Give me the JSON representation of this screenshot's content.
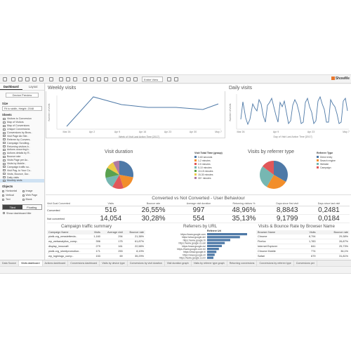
{
  "toolbar": {
    "fit_label": "Entire View",
    "brand": "ShowMe"
  },
  "leftpane": {
    "tabs": [
      "Dashboard",
      "Layout"
    ],
    "device_preview": "Device Preview",
    "size_head": "Size",
    "size_value": "Fit to width, Height: 2048",
    "sheets_head": "Sheets",
    "sheets": [
      "Visitors to Conversion",
      "Map of Visitors",
      "Map of Conversions",
      "Unique Conversions",
      "Conversions by Brow..",
      "Visit Page Ab.Site..",
      "Referrer by Convers..",
      "Campaign Scrolling..",
      "Returning visitors b..",
      "Actions occurring b..",
      "Actions details by R..",
      "Bounce rate",
      "Visits Page per Ac..",
      "Visits by Mobile..",
      "Campaign traffic su..",
      "Visit Pag..to Your Co..",
      "Visits, Bounce, Dur..",
      "Daily visits",
      "Monthly visits"
    ],
    "selected_sheet": 18,
    "objects_head": "Objects",
    "objects": [
      "Horizontal",
      "Image",
      "Vertical",
      "Web Page",
      "Text",
      "Blank"
    ],
    "tiled_label": "Tiled",
    "floating_label": "Floating",
    "show_title": "Show dashboard title"
  },
  "weekly": {
    "title": "Weekly visits",
    "ylabel": "Number of visits",
    "xlabel": "Week of Visit Last Action Time [2017]",
    "ticks": [
      "Mar 26",
      "Apr 2",
      "Apr 9",
      "Apr 16",
      "Apr 23",
      "Apr 30",
      "May 7"
    ]
  },
  "daily": {
    "title": "Daily visits",
    "ylabel": "Number of visits",
    "xlabel": "Day of Visit Last Action Time [2017]",
    "ticks": [
      "Mar 26",
      "Apr 9",
      "Apr 23",
      "May 7"
    ]
  },
  "duration": {
    "title": "Visit duration",
    "legend_title": "Visit Total Time (group)",
    "labels": [
      "0-60 seconds",
      "1-2 minutes",
      "2-5 minutes",
      "5-10 minutes",
      "10-15 minutes",
      "15-30 minutes",
      "30+ minutes"
    ],
    "colors": [
      "#4e79a7",
      "#f28e2b",
      "#e15759",
      "#76b7b2",
      "#59a14f",
      "#edc948",
      "#b07aa1"
    ]
  },
  "referrer_type": {
    "title": "Visits by referrer type",
    "legend_title": "Referrer Type",
    "labels": [
      "Direct entry",
      "Search engine",
      "Website",
      "Campaign"
    ],
    "colors": [
      "#4e79a7",
      "#f28e2b",
      "#76b7b2",
      "#e15759"
    ]
  },
  "converted": {
    "title": "Converted vs Not Converted - User Behaviour",
    "headers": [
      "Visit Goal Converted",
      "Visits",
      "Bounce rate",
      "Average visit duration",
      "Returning visitors %",
      "Days since first visit",
      "Days since last visit"
    ],
    "rows": [
      {
        "label": "Converted",
        "values": [
          "516",
          "26,55%",
          "997",
          "48,96%",
          "8,8843",
          "0,2481"
        ]
      },
      {
        "label": "Not converted",
        "values": [
          "14,054",
          "30,28%",
          "554",
          "35,13%",
          "9,1799",
          "0,0184"
        ]
      }
    ]
  },
  "campaign": {
    "title": "Campaign traffic summary",
    "headers": [
      "Campaign Name",
      "Visits",
      "Average visit",
      "Bounce rate"
    ],
    "rows": [
      [
        "piwik.org_newsletterda..",
        "1,160",
        "294",
        "21,38%"
      ],
      [
        "wp_webanalytics_comp..",
        "396",
        "175",
        "61,87%"
      ],
      [
        "display_innocraft",
        "279",
        "161",
        "22,58%"
      ],
      [
        "piwik.org_sheetpromotion..",
        "171",
        "253",
        "8,19%"
      ],
      [
        "wp_loginlogo_comp..",
        "153",
        "69",
        "35,29%"
      ],
      [
        "wp_dataanalytics",
        "119",
        "114",
        "31,93%"
      ]
    ]
  },
  "referrers_url": {
    "title": "Referrers by URL",
    "header": "Referrer Url",
    "urls": [
      "https://www.google.com",
      "https://www.google.de/",
      "https://www.google.fr/",
      "https://www.google.co.uk/",
      "https://www.google.es/",
      "https://www.google.com.br/",
      "https://www.google.it/",
      "https://www.google.nl/",
      "https://www.google.co.in/"
    ],
    "bars": [
      0.95,
      0.78,
      0.55,
      0.42,
      0.35,
      0.28,
      0.22,
      0.18,
      0.15
    ]
  },
  "browser": {
    "title": "Visits & Bounce Rate by Browser Name",
    "headers": [
      "Browser Name",
      "Visits",
      "Bounce rate"
    ],
    "rows": [
      [
        "Chrome",
        "8,794",
        "29,38%"
      ],
      [
        "Firefox",
        "1,783",
        "26,87%"
      ],
      [
        "Internet Explorer",
        "841",
        "25,73%"
      ],
      [
        "Chrome Mobile",
        "774",
        "36,1%"
      ],
      [
        "Safari",
        "679",
        "31,81%"
      ],
      [
        "Mobile Safari",
        "497",
        "36,82%"
      ]
    ]
  },
  "sheet_tabs": [
    "Data Source",
    "Visits dashboard",
    "Actions dashboard",
    "Conversions dashboard",
    "Visits by device type",
    "Conversions by visit duration",
    "Visit duration graph",
    "Visits by referrer type graph",
    "Returning conversions",
    "Conversions by referrer type",
    "Conversions per "
  ]
}
